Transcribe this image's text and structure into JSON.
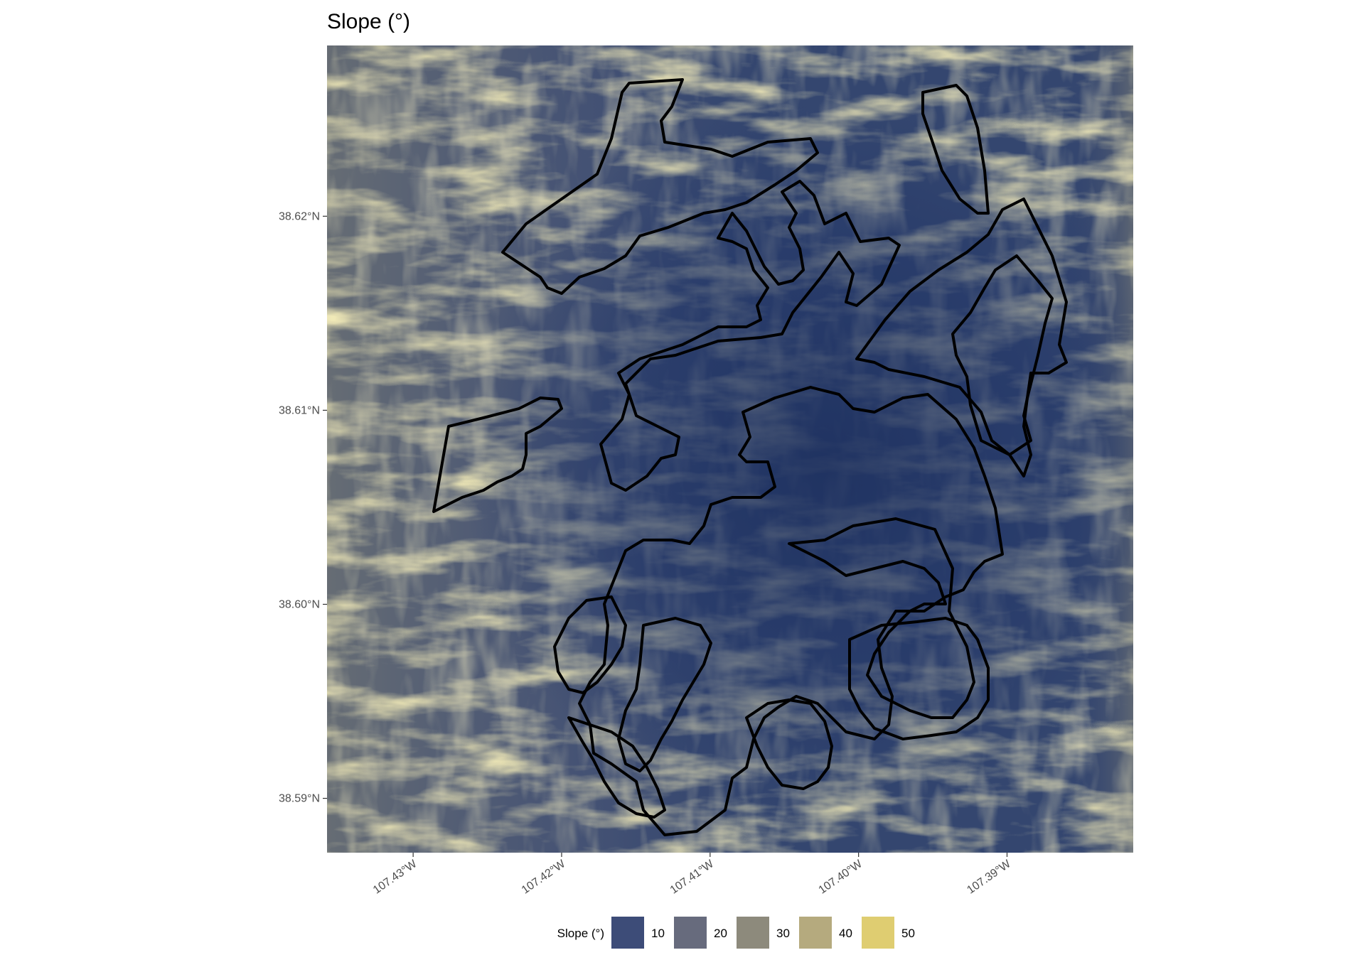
{
  "title": "Slope (°)",
  "map": {
    "lon_range": [
      -107.4358,
      -107.3815
    ],
    "lat_range": [
      38.5872,
      38.6288
    ],
    "x_ticks": [
      {
        "value": -107.43,
        "label": "107.43°W"
      },
      {
        "value": -107.42,
        "label": "107.42°W"
      },
      {
        "value": -107.41,
        "label": "107.41°W"
      },
      {
        "value": -107.4,
        "label": "107.40°W"
      },
      {
        "value": -107.39,
        "label": "107.39°W"
      }
    ],
    "y_ticks": [
      {
        "value": 38.62,
        "label": "38.62°N"
      },
      {
        "value": 38.61,
        "label": "38.61°N"
      },
      {
        "value": 38.6,
        "label": "38.60°N"
      },
      {
        "value": 38.59,
        "label": "38.59°N"
      }
    ],
    "raster_palette": {
      "low": "#1f3260",
      "mid": "#4a5a82",
      "high": "#e0d27a"
    },
    "outline_color": "#000000"
  },
  "legend": {
    "title": "Slope (°)",
    "placement": "bottom",
    "items": [
      {
        "label": "10",
        "color": "#3d4c78"
      },
      {
        "label": "20",
        "color": "#676b7d"
      },
      {
        "label": "30",
        "color": "#8d8a7c"
      },
      {
        "label": "40",
        "color": "#b5aa7e"
      },
      {
        "label": "50",
        "color": "#dfcd71"
      }
    ]
  }
}
